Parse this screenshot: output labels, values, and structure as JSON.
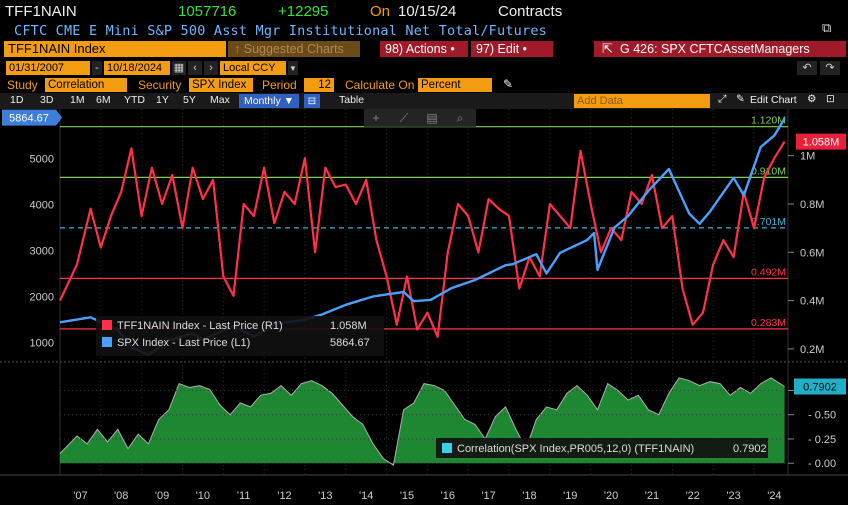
{
  "header": {
    "ticker": "TFF1NAIN",
    "last": "1057716",
    "change": "+12295",
    "on_label": "On",
    "date": "10/15/24",
    "unit": "Contracts",
    "description": "CFTC CME E Mini S&P 500 Asst Mgr Institutional Net Total/Futures"
  },
  "toolbar": {
    "security_box": "TFF1NAIN Index",
    "suggested": "Suggested Charts",
    "suggested_prefix": "↑",
    "actions": "98) Actions •",
    "edit": "97) Edit •",
    "chart_id": "G 426: SPX CFTCAssetManagers",
    "start_date": "01/31/2007",
    "end_date": "10/18/2024",
    "currency": "Local CCY",
    "study_label": "Study",
    "study_value": "Correlation",
    "security_label": "Security",
    "security_value": "SPX Index",
    "period_label": "Period",
    "period_value": "12",
    "calc_label": "Calculate On",
    "calc_value": "Percent",
    "periods": [
      "1D",
      "3D",
      "1M",
      "6M",
      "YTD",
      "1Y",
      "5Y",
      "Max"
    ],
    "freq": "Monthly",
    "table_label": "Table",
    "add_data": "Add Data",
    "edit_chart": "Edit Chart"
  },
  "chart_data": [
    {
      "type": "line",
      "x_range": [
        "2007-01",
        "2024-10"
      ],
      "x_ticks": [
        "'07",
        "'08",
        "'09",
        "'10",
        "'11",
        "'12",
        "'13",
        "'14",
        "'15",
        "'16",
        "'17",
        "'18",
        "'19",
        "'20",
        "'21",
        "'22",
        "'23",
        "'24"
      ],
      "left_axis": {
        "ticks": [
          "1000",
          "2000",
          "3000",
          "4000",
          "5000"
        ],
        "range": [
          600,
          5900
        ]
      },
      "right_axis": {
        "ticks": [
          "0.2M",
          "0.4M",
          "0.6M",
          "0.8M",
          "1M"
        ],
        "range": [
          0.15,
          1.16
        ]
      },
      "series": [
        {
          "name": "TFF1NAIN Index - Last Price (R1)",
          "last": "1.058M",
          "axis": "right",
          "color": "#ff3048",
          "unit": "M contracts",
          "x": [
            "2007-01",
            "2007-06",
            "2007-10",
            "2008-01",
            "2008-04",
            "2008-07",
            "2008-10",
            "2009-01",
            "2009-04",
            "2009-07",
            "2009-10",
            "2010-01",
            "2010-04",
            "2010-07",
            "2010-10",
            "2011-01",
            "2011-04",
            "2011-07",
            "2011-10",
            "2012-01",
            "2012-04",
            "2012-07",
            "2012-10",
            "2013-01",
            "2013-04",
            "2013-07",
            "2013-10",
            "2014-01",
            "2014-04",
            "2014-07",
            "2014-10",
            "2015-01",
            "2015-04",
            "2015-07",
            "2015-10",
            "2016-01",
            "2016-04",
            "2016-07",
            "2016-10",
            "2017-01",
            "2017-04",
            "2017-07",
            "2017-10",
            "2018-01",
            "2018-04",
            "2018-07",
            "2018-10",
            "2019-01",
            "2019-04",
            "2019-07",
            "2019-10",
            "2020-01",
            "2020-04",
            "2020-07",
            "2020-10",
            "2021-01",
            "2021-04",
            "2021-07",
            "2021-10",
            "2022-01",
            "2022-04",
            "2022-07",
            "2022-10",
            "2023-01",
            "2023-04",
            "2023-07",
            "2023-10",
            "2024-01",
            "2024-04",
            "2024-07",
            "2024-10"
          ],
          "y": [
            0.4,
            0.55,
            0.78,
            0.62,
            0.75,
            0.85,
            1.03,
            0.75,
            0.95,
            0.8,
            0.92,
            0.7,
            0.95,
            0.82,
            0.9,
            0.5,
            0.42,
            0.8,
            0.75,
            0.95,
            0.72,
            0.85,
            0.8,
            0.99,
            0.6,
            0.95,
            0.87,
            0.88,
            0.8,
            0.9,
            0.65,
            0.5,
            0.3,
            0.5,
            0.28,
            0.35,
            0.25,
            0.6,
            0.8,
            0.75,
            0.6,
            0.82,
            0.78,
            0.75,
            0.45,
            0.58,
            0.5,
            0.8,
            0.75,
            0.7,
            1.02,
            0.8,
            0.6,
            0.7,
            0.65,
            0.85,
            0.8,
            0.92,
            0.7,
            0.75,
            0.45,
            0.3,
            0.35,
            0.55,
            0.65,
            0.58,
            0.85,
            0.7,
            0.91,
            0.99,
            1.058
          ]
        },
        {
          "name": "SPX Index - Last Price (L1)",
          "last": "5864.67",
          "axis": "left",
          "color": "#4aa0ff",
          "unit": "index points",
          "x": [
            "2007-01",
            "2007-10",
            "2008-06",
            "2008-10",
            "2009-03",
            "2009-09",
            "2010-04",
            "2010-07",
            "2011-04",
            "2011-10",
            "2012-04",
            "2013-01",
            "2013-06",
            "2014-01",
            "2014-09",
            "2015-06",
            "2015-09",
            "2016-02",
            "2016-08",
            "2017-03",
            "2017-12",
            "2018-02",
            "2018-09",
            "2018-12",
            "2019-04",
            "2019-12",
            "2020-02",
            "2020-03",
            "2020-08",
            "2020-12",
            "2021-06",
            "2021-12",
            "2022-06",
            "2022-09",
            "2022-12",
            "2023-07",
            "2023-10",
            "2024-03",
            "2024-07",
            "2024-10"
          ],
          "y": [
            1440,
            1550,
            1280,
            900,
            735,
            1050,
            1200,
            1060,
            1360,
            1130,
            1400,
            1500,
            1610,
            1820,
            2000,
            2100,
            1900,
            1930,
            2180,
            2360,
            2680,
            2700,
            2920,
            2500,
            2950,
            3230,
            3380,
            2580,
            3500,
            3750,
            4300,
            4770,
            3800,
            3580,
            3840,
            4580,
            4200,
            5250,
            5500,
            5864.67
          ]
        }
      ],
      "reference_lines": [
        {
          "label": "1.120M",
          "value": 1.12,
          "color": "#7fd05a",
          "style": "solid"
        },
        {
          "label": "0.910M",
          "value": 0.91,
          "color": "#7fd05a",
          "style": "solid"
        },
        {
          "label": "0.701M",
          "value": 0.701,
          "color": "#3fb0d8",
          "style": "dashed"
        },
        {
          "label": "0.492M",
          "value": 0.492,
          "color": "#ff3048",
          "style": "solid"
        },
        {
          "label": "0.283M",
          "value": 0.283,
          "color": "#ff3048",
          "style": "solid"
        }
      ],
      "spx_badge": "5864.67",
      "tff_badge": "1.058M",
      "legend_placement": "bottom-left"
    },
    {
      "type": "area",
      "name": "Correlation(SPX Index,PR005,12,0) (TFF1NAIN)",
      "last": "0.7902",
      "color": "#22a03a",
      "axis_ticks": [
        "0.00",
        "0.25",
        "0.50",
        "0.75"
      ],
      "ylim": [
        -0.08,
        0.95
      ],
      "x": [
        "2007-01",
        "2007-06",
        "2007-09",
        "2007-12",
        "2008-03",
        "2008-06",
        "2008-09",
        "2008-12",
        "2009-03",
        "2009-06",
        "2009-09",
        "2009-12",
        "2010-03",
        "2010-06",
        "2010-09",
        "2010-12",
        "2011-03",
        "2011-06",
        "2011-09",
        "2011-12",
        "2012-03",
        "2012-06",
        "2012-09",
        "2012-12",
        "2013-03",
        "2013-06",
        "2013-09",
        "2013-12",
        "2014-03",
        "2014-06",
        "2014-09",
        "2014-12",
        "2015-03",
        "2015-06",
        "2015-09",
        "2015-12",
        "2016-03",
        "2016-06",
        "2016-09",
        "2016-12",
        "2017-03",
        "2017-06",
        "2017-09",
        "2017-12",
        "2018-03",
        "2018-06",
        "2018-09",
        "2018-12",
        "2019-03",
        "2019-06",
        "2019-09",
        "2019-12",
        "2020-03",
        "2020-06",
        "2020-09",
        "2020-12",
        "2021-03",
        "2021-06",
        "2021-09",
        "2021-12",
        "2022-03",
        "2022-06",
        "2022-09",
        "2022-12",
        "2023-03",
        "2023-06",
        "2023-09",
        "2023-12",
        "2024-03",
        "2024-06",
        "2024-10"
      ],
      "y": [
        0.1,
        0.28,
        0.2,
        0.35,
        0.22,
        0.35,
        0.15,
        0.3,
        0.2,
        0.45,
        0.55,
        0.82,
        0.78,
        0.8,
        0.76,
        0.6,
        0.5,
        0.62,
        0.58,
        0.7,
        0.72,
        0.8,
        0.7,
        0.82,
        0.85,
        0.8,
        0.72,
        0.6,
        0.48,
        0.4,
        0.2,
        0.05,
        -0.02,
        0.55,
        0.62,
        0.82,
        0.8,
        0.75,
        0.6,
        0.45,
        0.4,
        0.25,
        0.48,
        0.58,
        0.35,
        0.15,
        0.45,
        0.58,
        0.55,
        0.72,
        0.8,
        0.7,
        0.55,
        0.82,
        0.75,
        0.65,
        0.7,
        0.55,
        0.5,
        0.72,
        0.88,
        0.85,
        0.8,
        0.84,
        0.82,
        0.7,
        0.78,
        0.72,
        0.82,
        0.88,
        0.7902
      ]
    }
  ]
}
